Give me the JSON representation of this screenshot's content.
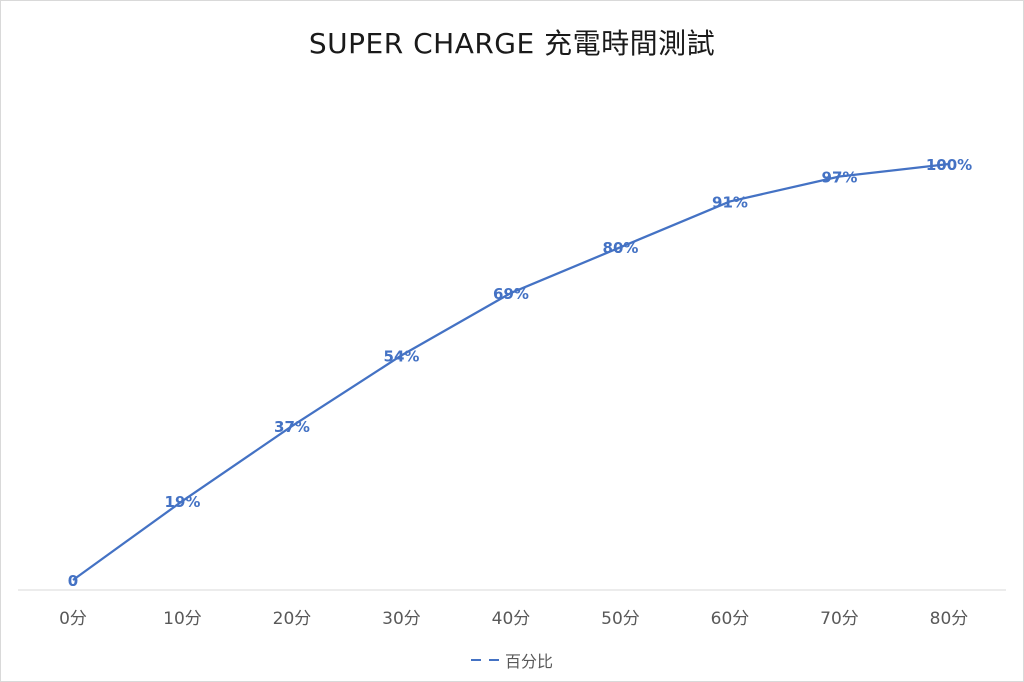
{
  "chart_data": {
    "type": "line",
    "title": "SUPER CHARGE 充電時間測試",
    "xlabel": "",
    "ylabel": "",
    "categories": [
      "0分",
      "10分",
      "20分",
      "30分",
      "40分",
      "50分",
      "60分",
      "70分",
      "80分"
    ],
    "series": [
      {
        "name": "百分比",
        "values": [
          0,
          19,
          37,
          54,
          69,
          80,
          91,
          97,
          100
        ],
        "data_labels": [
          "0",
          "19%",
          "37%",
          "54%",
          "69%",
          "80%",
          "91%",
          "97%",
          "100%"
        ],
        "color": "#4472c4"
      }
    ],
    "ylim": [
      0,
      112
    ],
    "grid": false,
    "y_axis_visible": false,
    "legend_position": "bottom"
  }
}
